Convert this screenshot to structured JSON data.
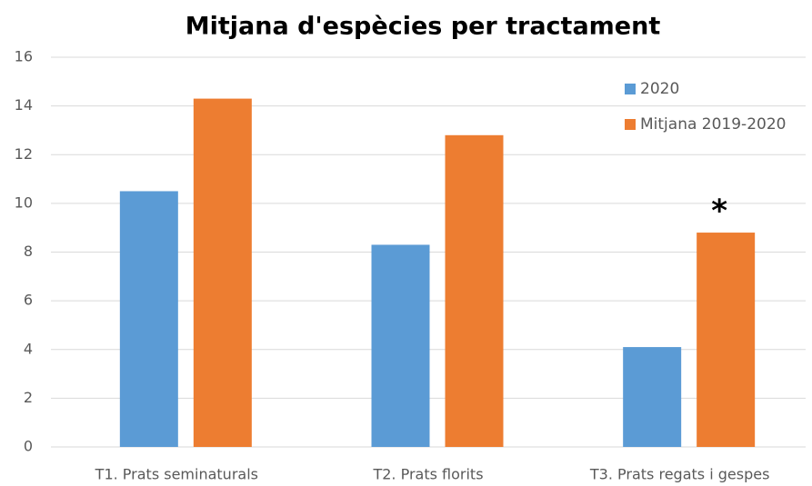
{
  "chart_data": {
    "type": "bar",
    "title": "Mitjana d'espècies per tractament",
    "categories": [
      "T1. Prats seminaturals",
      "T2.  Prats florits",
      "T3. Prats regats i gespes"
    ],
    "series": [
      {
        "name": "2020",
        "color": "#5b9bd5",
        "values": [
          10.5,
          8.3,
          4.1
        ]
      },
      {
        "name": "Mitjana 2019-2020",
        "color": "#ed7d31",
        "values": [
          14.3,
          12.8,
          8.8
        ]
      }
    ],
    "annotations": [
      "*"
    ],
    "ylim": [
      0,
      16
    ],
    "yticks": [
      0,
      2,
      4,
      6,
      8,
      10,
      12,
      14,
      16
    ],
    "grid": true,
    "legend": "top-right"
  }
}
